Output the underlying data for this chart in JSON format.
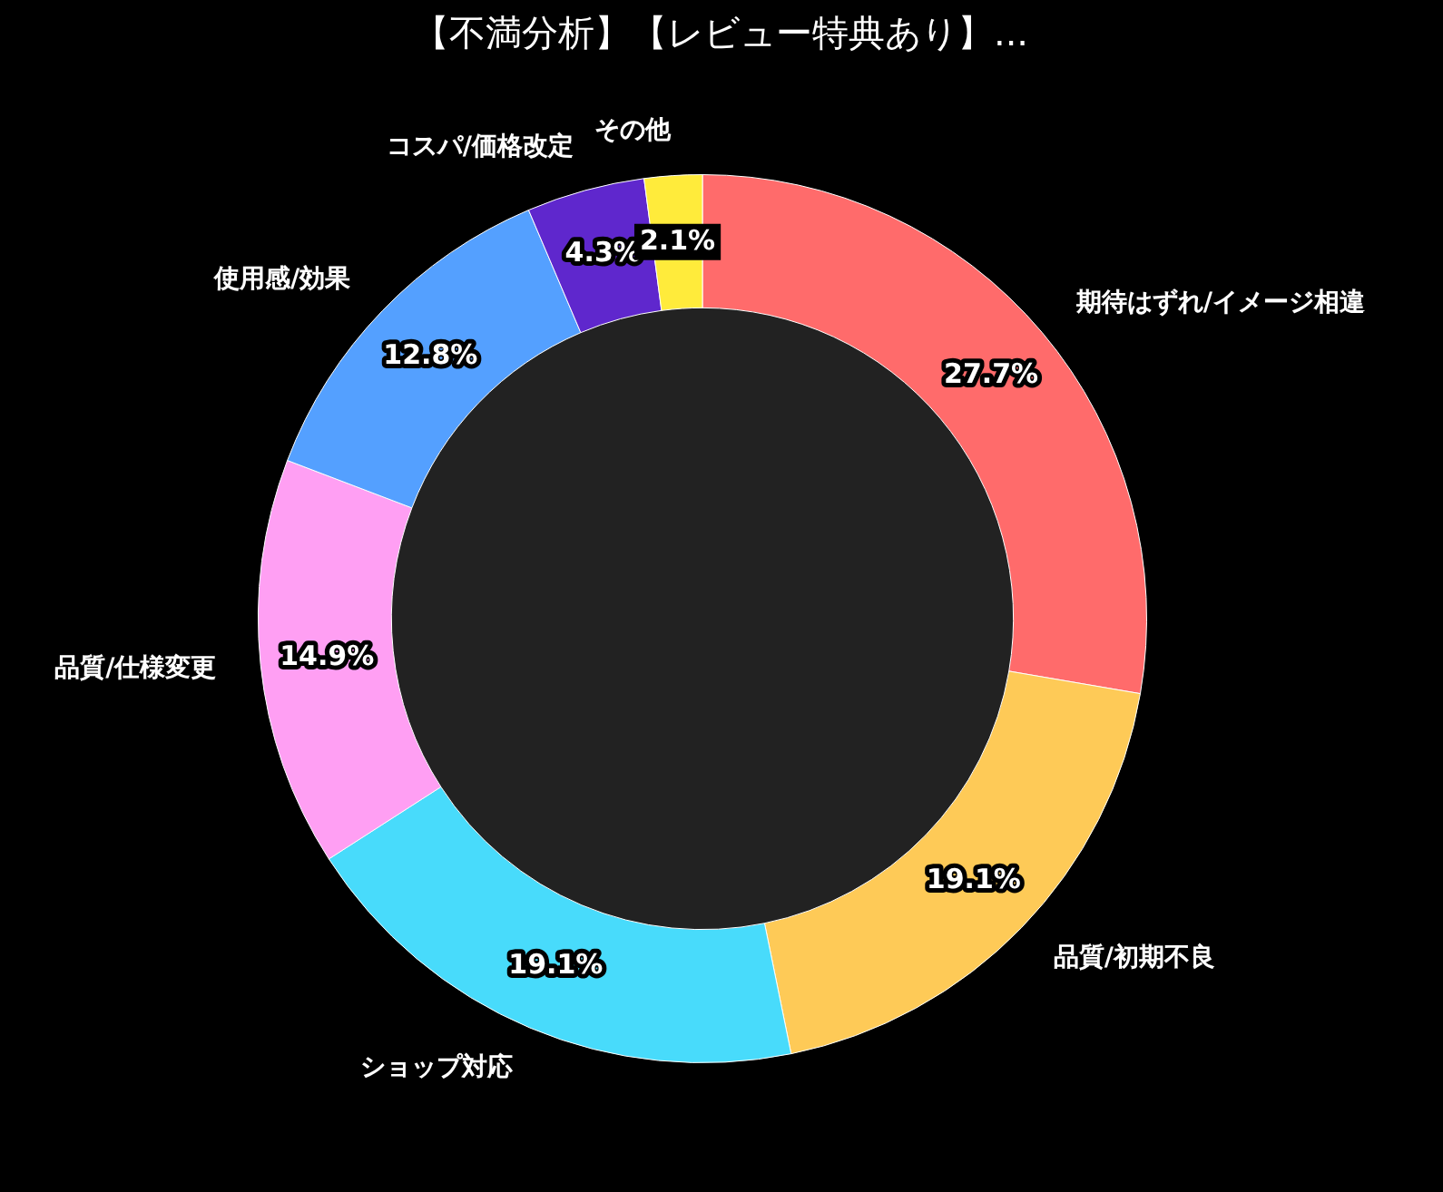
{
  "chart_data": {
    "type": "donut",
    "title": "【不満分析】【レビュー特典あり】...",
    "categories": [
      "期待はずれ/イメージ相違",
      "品質/初期不良",
      "ショップ対応",
      "品質/仕様変更",
      "使用感/効果",
      "コスパ/価格改定",
      "その他"
    ],
    "values": [
      27.7,
      19.1,
      19.1,
      14.9,
      12.8,
      4.3,
      2.1
    ],
    "colors": [
      "#ff6b6b",
      "#feca57",
      "#48dbfb",
      "#ff9ff3",
      "#54a0ff",
      "#5f27cd",
      "#ffeb3b"
    ],
    "value_labels": [
      "27.7%",
      "19.1%",
      "19.1%",
      "14.9%",
      "12.8%",
      "4.3%",
      "2.1%"
    ],
    "legend": false
  }
}
